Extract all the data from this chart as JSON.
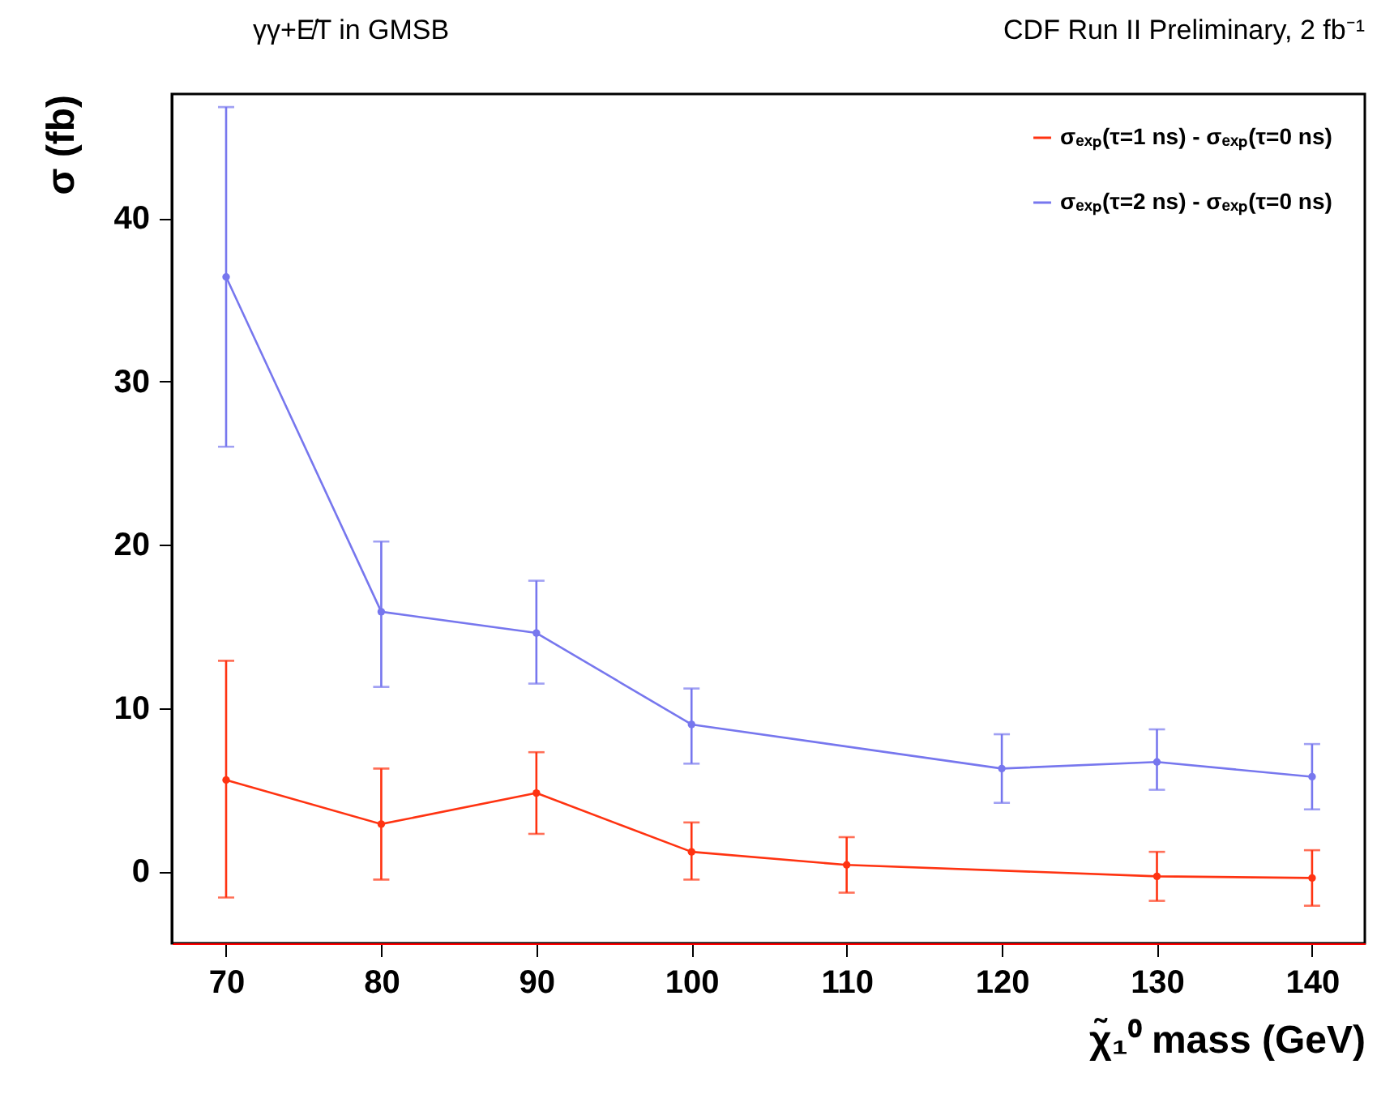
{
  "chart_data": {
    "type": "line",
    "title": "γγ+E̸T in GMSB",
    "annotations": [
      "CDF Run II Preliminary, 2 fb⁻¹"
    ],
    "xlabel": "χ̃₁⁰ mass (GeV)",
    "ylabel": "σ (fb)",
    "xlim": [
      66.5,
      143.4
    ],
    "xticks": [
      70,
      80,
      90,
      100,
      110,
      120,
      130,
      140
    ],
    "ylim": [
      -4.4,
      47.6
    ],
    "yticks": [
      0,
      10,
      20,
      30,
      40
    ],
    "grid": false,
    "legend": "top right",
    "marker": "circle",
    "line_style": "solid",
    "series": [
      {
        "name": "σₑₓₚ(τ=1 ns) - σₑₓₚ(τ=0 ns)",
        "color": "#ff3311",
        "x": [
          70,
          80,
          90,
          100,
          110,
          130,
          140
        ],
        "values": [
          5.6,
          2.9,
          4.8,
          1.2,
          0.4,
          -0.3,
          -0.4
        ],
        "errors": [
          [
            -1.6,
            12.9
          ],
          [
            -0.5,
            6.3
          ],
          [
            2.3,
            7.3
          ],
          [
            -0.5,
            3.0
          ],
          [
            -1.3,
            2.1
          ],
          [
            -1.8,
            1.2
          ],
          [
            -2.1,
            1.3
          ]
        ]
      },
      {
        "name": "σₑₓₚ(τ=2 ns) - σₑₓₚ(τ=0 ns)",
        "color": "#7777ee",
        "x": [
          70,
          80,
          90,
          100,
          120,
          130,
          140
        ],
        "values": [
          36.4,
          15.9,
          14.6,
          9.0,
          6.3,
          6.7,
          5.8
        ],
        "errors": [
          [
            26.0,
            46.8
          ],
          [
            11.3,
            20.2
          ],
          [
            11.5,
            17.8
          ],
          [
            6.6,
            11.2
          ],
          [
            4.2,
            8.4
          ],
          [
            5.0,
            8.7
          ],
          [
            3.8,
            7.8
          ]
        ]
      }
    ]
  }
}
